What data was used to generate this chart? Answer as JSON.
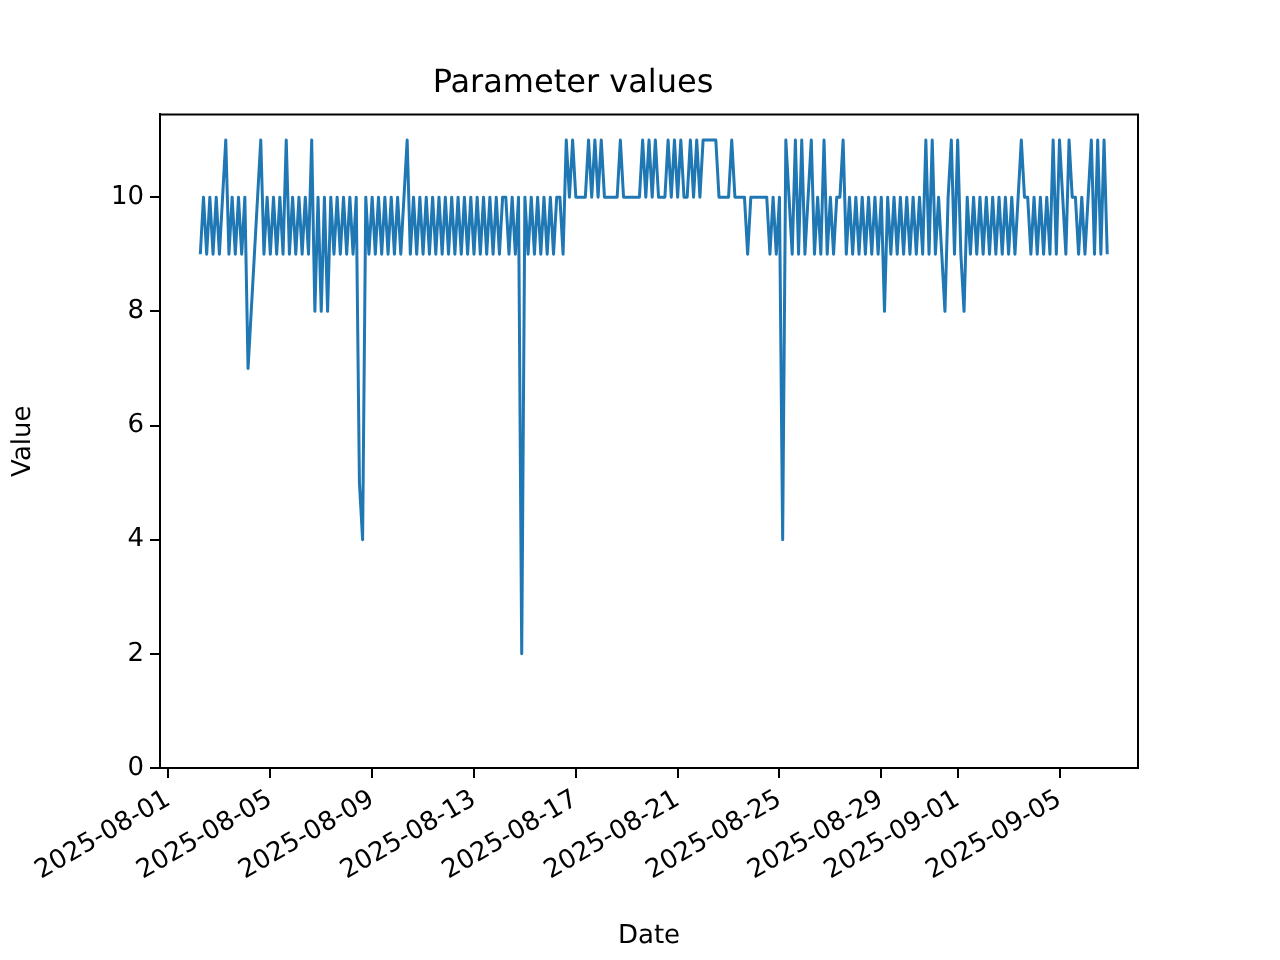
{
  "chart_data": {
    "type": "line",
    "title": "Parameter values",
    "xlabel": "Date",
    "ylabel": "Value",
    "color": "#1f77b4",
    "marker": "none",
    "grid": false,
    "legend": false,
    "xlim": [
      "2025-07-31T16:00",
      "2025-09-08T02:00"
    ],
    "xticks": [
      "2025-08-01",
      "2025-08-05",
      "2025-08-09",
      "2025-08-13",
      "2025-08-17",
      "2025-08-21",
      "2025-08-25",
      "2025-08-29",
      "2025-09-01",
      "2025-09-05"
    ],
    "ylim": [
      0,
      11.45
    ],
    "yticks": [
      0,
      2,
      4,
      6,
      8,
      10
    ],
    "x": [
      "2025-08-02T06:00",
      "2025-08-02T09:00",
      "2025-08-02T12:00",
      "2025-08-02T15:00",
      "2025-08-02T18:00",
      "2025-08-02T21:00",
      "2025-08-03T00:00",
      "2025-08-03T03:00",
      "2025-08-03T06:00",
      "2025-08-03T09:00",
      "2025-08-03T12:00",
      "2025-08-03T15:00",
      "2025-08-03T18:00",
      "2025-08-03T21:00",
      "2025-08-04T00:00",
      "2025-08-04T03:00",
      "2025-08-04T06:00",
      "2025-08-04T09:00",
      "2025-08-04T12:00",
      "2025-08-04T15:00",
      "2025-08-04T18:00",
      "2025-08-04T21:00",
      "2025-08-05T00:00",
      "2025-08-05T03:00",
      "2025-08-05T06:00",
      "2025-08-05T09:00",
      "2025-08-05T12:00",
      "2025-08-05T15:00",
      "2025-08-05T18:00",
      "2025-08-05T21:00",
      "2025-08-06T00:00",
      "2025-08-06T03:00",
      "2025-08-06T06:00",
      "2025-08-06T09:00",
      "2025-08-06T12:00",
      "2025-08-06T15:00",
      "2025-08-06T18:00",
      "2025-08-06T21:00",
      "2025-08-07T00:00",
      "2025-08-07T03:00",
      "2025-08-07T06:00",
      "2025-08-07T09:00",
      "2025-08-07T12:00",
      "2025-08-07T15:00",
      "2025-08-07T18:00",
      "2025-08-07T21:00",
      "2025-08-08T00:00",
      "2025-08-08T03:00",
      "2025-08-08T06:00",
      "2025-08-08T09:00",
      "2025-08-08T12:00",
      "2025-08-08T15:00",
      "2025-08-08T18:00",
      "2025-08-08T21:00",
      "2025-08-09T00:00",
      "2025-08-09T03:00",
      "2025-08-09T06:00",
      "2025-08-09T09:00",
      "2025-08-09T12:00",
      "2025-08-09T15:00",
      "2025-08-09T18:00",
      "2025-08-09T21:00",
      "2025-08-10T00:00",
      "2025-08-10T03:00",
      "2025-08-10T06:00",
      "2025-08-10T09:00",
      "2025-08-10T12:00",
      "2025-08-10T15:00",
      "2025-08-10T18:00",
      "2025-08-10T21:00",
      "2025-08-11T00:00",
      "2025-08-11T03:00",
      "2025-08-11T06:00",
      "2025-08-11T09:00",
      "2025-08-11T12:00",
      "2025-08-11T15:00",
      "2025-08-11T18:00",
      "2025-08-11T21:00",
      "2025-08-12T00:00",
      "2025-08-12T03:00",
      "2025-08-12T06:00",
      "2025-08-12T09:00",
      "2025-08-12T12:00",
      "2025-08-12T15:00",
      "2025-08-12T18:00",
      "2025-08-12T21:00",
      "2025-08-13T00:00",
      "2025-08-13T03:00",
      "2025-08-13T06:00",
      "2025-08-13T09:00",
      "2025-08-13T12:00",
      "2025-08-13T15:00",
      "2025-08-13T18:00",
      "2025-08-13T21:00",
      "2025-08-14T00:00",
      "2025-08-14T03:00",
      "2025-08-14T06:00",
      "2025-08-14T09:00",
      "2025-08-14T12:00",
      "2025-08-14T15:00",
      "2025-08-14T18:00",
      "2025-08-14T21:00",
      "2025-08-15T00:00",
      "2025-08-15T03:00",
      "2025-08-15T06:00",
      "2025-08-15T09:00",
      "2025-08-15T12:00",
      "2025-08-15T15:00",
      "2025-08-15T18:00",
      "2025-08-15T21:00",
      "2025-08-16T00:00",
      "2025-08-16T03:00",
      "2025-08-16T06:00",
      "2025-08-16T09:00",
      "2025-08-16T12:00",
      "2025-08-16T15:00",
      "2025-08-16T18:00",
      "2025-08-16T21:00",
      "2025-08-17T00:00",
      "2025-08-17T03:00",
      "2025-08-17T06:00",
      "2025-08-17T09:00",
      "2025-08-17T12:00",
      "2025-08-17T15:00",
      "2025-08-17T18:00",
      "2025-08-17T21:00",
      "2025-08-18T00:00",
      "2025-08-18T03:00",
      "2025-08-18T06:00",
      "2025-08-18T09:00",
      "2025-08-18T12:00",
      "2025-08-18T15:00",
      "2025-08-18T18:00",
      "2025-08-18T21:00",
      "2025-08-19T00:00",
      "2025-08-19T03:00",
      "2025-08-19T06:00",
      "2025-08-19T09:00",
      "2025-08-19T12:00",
      "2025-08-19T15:00",
      "2025-08-19T18:00",
      "2025-08-19T21:00",
      "2025-08-20T00:00",
      "2025-08-20T03:00",
      "2025-08-20T06:00",
      "2025-08-20T09:00",
      "2025-08-20T12:00",
      "2025-08-20T15:00",
      "2025-08-20T18:00",
      "2025-08-20T21:00",
      "2025-08-21T00:00",
      "2025-08-21T03:00",
      "2025-08-21T06:00",
      "2025-08-21T09:00",
      "2025-08-21T12:00",
      "2025-08-21T15:00",
      "2025-08-21T18:00",
      "2025-08-21T21:00",
      "2025-08-22T00:00",
      "2025-08-22T03:00",
      "2025-08-22T06:00",
      "2025-08-22T09:00",
      "2025-08-22T12:00",
      "2025-08-22T15:00",
      "2025-08-22T18:00",
      "2025-08-22T21:00",
      "2025-08-23T00:00",
      "2025-08-23T03:00",
      "2025-08-23T06:00",
      "2025-08-23T09:00",
      "2025-08-23T12:00",
      "2025-08-23T15:00",
      "2025-08-23T18:00",
      "2025-08-23T21:00",
      "2025-08-24T00:00",
      "2025-08-24T03:00",
      "2025-08-24T06:00",
      "2025-08-24T09:00",
      "2025-08-24T12:00",
      "2025-08-24T15:00",
      "2025-08-24T18:00",
      "2025-08-24T21:00",
      "2025-08-25T00:00",
      "2025-08-25T03:00",
      "2025-08-25T06:00",
      "2025-08-25T09:00",
      "2025-08-25T12:00",
      "2025-08-25T15:00",
      "2025-08-25T18:00",
      "2025-08-25T21:00",
      "2025-08-26T00:00",
      "2025-08-26T03:00",
      "2025-08-26T06:00",
      "2025-08-26T09:00",
      "2025-08-26T12:00",
      "2025-08-26T15:00",
      "2025-08-26T18:00",
      "2025-08-26T21:00",
      "2025-08-27T00:00",
      "2025-08-27T03:00",
      "2025-08-27T06:00",
      "2025-08-27T09:00",
      "2025-08-27T12:00",
      "2025-08-27T15:00",
      "2025-08-27T18:00",
      "2025-08-27T21:00",
      "2025-08-28T00:00",
      "2025-08-28T03:00",
      "2025-08-28T06:00",
      "2025-08-28T09:00",
      "2025-08-28T12:00",
      "2025-08-28T15:00",
      "2025-08-28T18:00",
      "2025-08-28T21:00",
      "2025-08-29T00:00",
      "2025-08-29T03:00",
      "2025-08-29T06:00",
      "2025-08-29T09:00",
      "2025-08-29T12:00",
      "2025-08-29T15:00",
      "2025-08-29T18:00",
      "2025-08-29T21:00",
      "2025-08-30T00:00",
      "2025-08-30T03:00",
      "2025-08-30T06:00",
      "2025-08-30T09:00",
      "2025-08-30T12:00",
      "2025-08-30T15:00",
      "2025-08-30T18:00",
      "2025-08-30T21:00",
      "2025-08-31T00:00",
      "2025-08-31T03:00",
      "2025-08-31T06:00",
      "2025-08-31T09:00",
      "2025-08-31T12:00",
      "2025-08-31T15:00",
      "2025-08-31T18:00",
      "2025-08-31T21:00",
      "2025-09-01T00:00",
      "2025-09-01T03:00",
      "2025-09-01T06:00",
      "2025-09-01T09:00",
      "2025-09-01T12:00",
      "2025-09-01T15:00",
      "2025-09-01T18:00",
      "2025-09-01T21:00",
      "2025-09-02T00:00",
      "2025-09-02T03:00",
      "2025-09-02T06:00",
      "2025-09-02T09:00",
      "2025-09-02T12:00",
      "2025-09-02T15:00",
      "2025-09-02T18:00",
      "2025-09-02T21:00",
      "2025-09-03T00:00",
      "2025-09-03T03:00",
      "2025-09-03T06:00",
      "2025-09-03T09:00",
      "2025-09-03T12:00",
      "2025-09-03T15:00",
      "2025-09-03T18:00",
      "2025-09-03T21:00",
      "2025-09-04T00:00",
      "2025-09-04T03:00",
      "2025-09-04T06:00",
      "2025-09-04T09:00",
      "2025-09-04T12:00",
      "2025-09-04T15:00",
      "2025-09-04T18:00",
      "2025-09-04T21:00",
      "2025-09-05T00:00",
      "2025-09-05T03:00",
      "2025-09-05T06:00",
      "2025-09-05T09:00",
      "2025-09-05T12:00",
      "2025-09-05T15:00",
      "2025-09-05T18:00",
      "2025-09-05T21:00",
      "2025-09-06T00:00",
      "2025-09-06T03:00",
      "2025-09-06T06:00",
      "2025-09-06T09:00",
      "2025-09-06T12:00",
      "2025-09-06T15:00",
      "2025-09-06T18:00",
      "2025-09-06T21:00"
    ],
    "values": [
      9,
      10,
      9,
      10,
      9,
      10,
      9,
      10,
      11,
      9,
      10,
      9,
      10,
      9,
      10,
      7,
      8,
      9,
      10,
      11,
      9,
      10,
      9,
      10,
      9,
      10,
      9,
      11,
      9,
      10,
      9,
      10,
      9,
      10,
      9,
      11,
      8,
      10,
      8,
      10,
      8,
      10,
      9,
      10,
      9,
      10,
      9,
      10,
      9,
      10,
      5,
      4,
      10,
      9,
      10,
      9,
      10,
      9,
      10,
      9,
      10,
      9,
      10,
      9,
      10,
      11,
      9,
      10,
      9,
      10,
      9,
      10,
      9,
      10,
      9,
      10,
      9,
      10,
      9,
      10,
      9,
      10,
      9,
      10,
      9,
      10,
      9,
      10,
      9,
      10,
      9,
      10,
      9,
      10,
      9,
      10,
      10,
      9,
      10,
      9,
      10,
      2,
      10,
      9,
      10,
      9,
      10,
      9,
      10,
      9,
      10,
      9,
      10,
      10,
      9,
      11,
      10,
      11,
      10,
      10,
      10,
      10,
      11,
      10,
      11,
      10,
      11,
      10,
      10,
      10,
      10,
      10,
      11,
      10,
      10,
      10,
      10,
      10,
      10,
      11,
      10,
      11,
      10,
      11,
      10,
      10,
      10,
      11,
      10,
      11,
      10,
      11,
      10,
      10,
      11,
      10,
      11,
      10,
      11,
      11,
      11,
      11,
      11,
      10,
      10,
      10,
      10,
      11,
      10,
      10,
      10,
      10,
      9,
      10,
      10,
      10,
      10,
      10,
      10,
      9,
      10,
      9,
      10,
      4,
      11,
      10,
      9,
      11,
      9,
      11,
      9,
      10,
      11,
      9,
      10,
      9,
      11,
      9,
      10,
      9,
      10,
      10,
      11,
      9,
      10,
      9,
      10,
      9,
      10,
      9,
      10,
      9,
      10,
      9,
      10,
      8,
      10,
      9,
      10,
      9,
      10,
      9,
      10,
      9,
      10,
      9,
      10,
      9,
      11,
      9,
      11,
      9,
      10,
      9,
      8,
      10,
      11,
      9,
      11,
      9,
      8,
      10,
      9,
      10,
      9,
      10,
      9,
      10,
      9,
      10,
      9,
      10,
      9,
      10,
      9,
      10,
      9,
      10,
      11,
      10,
      10,
      9,
      10,
      9,
      10,
      9,
      10,
      9,
      11,
      9,
      11,
      10,
      9,
      11,
      10,
      10,
      9,
      10,
      9,
      10,
      11,
      9,
      11,
      9,
      11,
      9
    ]
  }
}
